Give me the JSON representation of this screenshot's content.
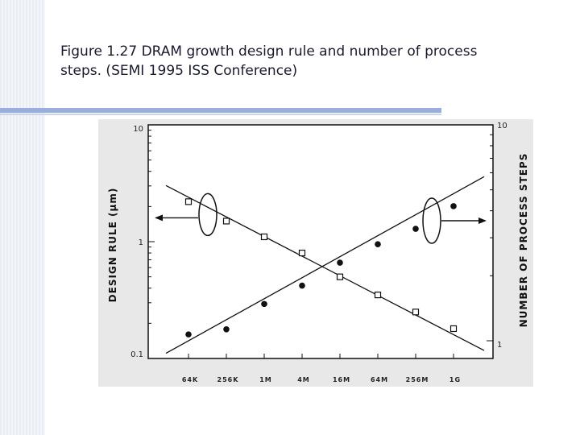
{
  "caption": {
    "line1": "Figure 1.27 DRAM growth design rule and number of process",
    "line2": "steps. (SEMI 1995 ISS Conference)"
  },
  "colors": {
    "accent_bar": "#9aaedb",
    "text": "#1a1a2e",
    "plot_bg": "#ffffff",
    "scan_bg": "#e8e8e8"
  },
  "chart_data": {
    "type": "scatter",
    "categories": [
      "64K",
      "256K",
      "1M",
      "4M",
      "16M",
      "64M",
      "256M",
      "1G"
    ],
    "left_axis": {
      "label": "DESIGN RULE (μm)",
      "scale": "log",
      "range": [
        0.1,
        10
      ],
      "ticks": [
        "10",
        "1",
        "0.1"
      ]
    },
    "right_axis": {
      "label": "NUMBER OF PROCESS STEPS",
      "scale": "log",
      "range": [
        1,
        10
      ],
      "ticks": [
        "10",
        "1"
      ]
    },
    "series": [
      {
        "marker": "open-square",
        "axis": "left",
        "points": [
          {
            "x": "64K",
            "y": 2.2
          },
          {
            "x": "256K",
            "y": 1.5
          },
          {
            "x": "1M",
            "y": 1.1
          },
          {
            "x": "4M",
            "y": 0.8
          },
          {
            "x": "16M",
            "y": 0.5
          },
          {
            "x": "64M",
            "y": 0.35
          },
          {
            "x": "256M",
            "y": 0.25
          },
          {
            "x": "1G",
            "y": 0.18
          }
        ],
        "trend": [
          {
            "x": "64K",
            "y": 2.4
          },
          {
            "x": "1G",
            "y": 0.16
          }
        ]
      },
      {
        "marker": "filled-circle",
        "axis": "right",
        "points": [
          {
            "x": "64K",
            "y": 1.07
          },
          {
            "x": "256K",
            "y": 1.13
          },
          {
            "x": "1M",
            "y": 1.48
          },
          {
            "x": "4M",
            "y": 1.8
          },
          {
            "x": "16M",
            "y": 2.3
          },
          {
            "x": "64M",
            "y": 2.8
          },
          {
            "x": "256M",
            "y": 3.3
          },
          {
            "x": "1G",
            "y": 4.2
          }
        ],
        "trend": [
          {
            "x": "64K",
            "y": 1.0
          },
          {
            "x": "1G",
            "y": 4.8
          }
        ]
      }
    ],
    "annotations": [
      {
        "type": "ellipse-with-arrow",
        "series": 0,
        "points_to": "left axis"
      },
      {
        "type": "ellipse-with-arrow",
        "series": 1,
        "points_to": "right axis"
      }
    ],
    "grid": false
  }
}
